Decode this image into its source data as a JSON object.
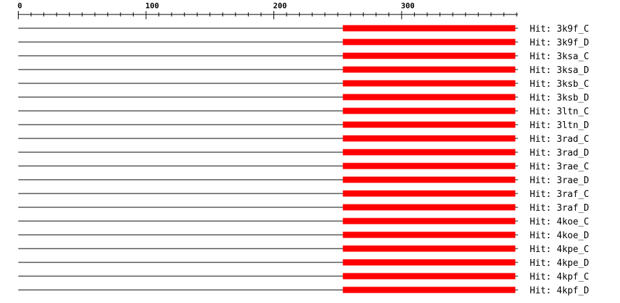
{
  "axis": {
    "min": 0,
    "max": 391,
    "major_ticks": [
      0,
      100,
      200,
      300
    ],
    "major_labels": [
      "0",
      "100",
      "200",
      "300"
    ],
    "minor_step": 10
  },
  "colors": {
    "hit_bar": "#ff0000",
    "line": "#000000"
  },
  "query_length": 391,
  "hits": [
    {
      "label": "Hit: 3k9f_C",
      "start": 254,
      "end": 389
    },
    {
      "label": "Hit: 3k9f_D",
      "start": 254,
      "end": 389
    },
    {
      "label": "Hit: 3ksa_C",
      "start": 254,
      "end": 389
    },
    {
      "label": "Hit: 3ksa_D",
      "start": 254,
      "end": 389
    },
    {
      "label": "Hit: 3ksb_C",
      "start": 254,
      "end": 389
    },
    {
      "label": "Hit: 3ksb_D",
      "start": 254,
      "end": 389
    },
    {
      "label": "Hit: 3ltn_C",
      "start": 254,
      "end": 389
    },
    {
      "label": "Hit: 3ltn_D",
      "start": 254,
      "end": 389
    },
    {
      "label": "Hit: 3rad_C",
      "start": 254,
      "end": 389
    },
    {
      "label": "Hit: 3rad_D",
      "start": 254,
      "end": 389
    },
    {
      "label": "Hit: 3rae_C",
      "start": 254,
      "end": 389
    },
    {
      "label": "Hit: 3rae_D",
      "start": 254,
      "end": 389
    },
    {
      "label": "Hit: 3raf_C",
      "start": 254,
      "end": 389
    },
    {
      "label": "Hit: 3raf_D",
      "start": 254,
      "end": 389
    },
    {
      "label": "Hit: 4koe_C",
      "start": 254,
      "end": 389
    },
    {
      "label": "Hit: 4koe_D",
      "start": 254,
      "end": 389
    },
    {
      "label": "Hit: 4kpe_C",
      "start": 254,
      "end": 389
    },
    {
      "label": "Hit: 4kpe_D",
      "start": 254,
      "end": 389
    },
    {
      "label": "Hit: 4kpf_C",
      "start": 254,
      "end": 389
    },
    {
      "label": "Hit: 4kpf_D",
      "start": 254,
      "end": 389
    }
  ]
}
